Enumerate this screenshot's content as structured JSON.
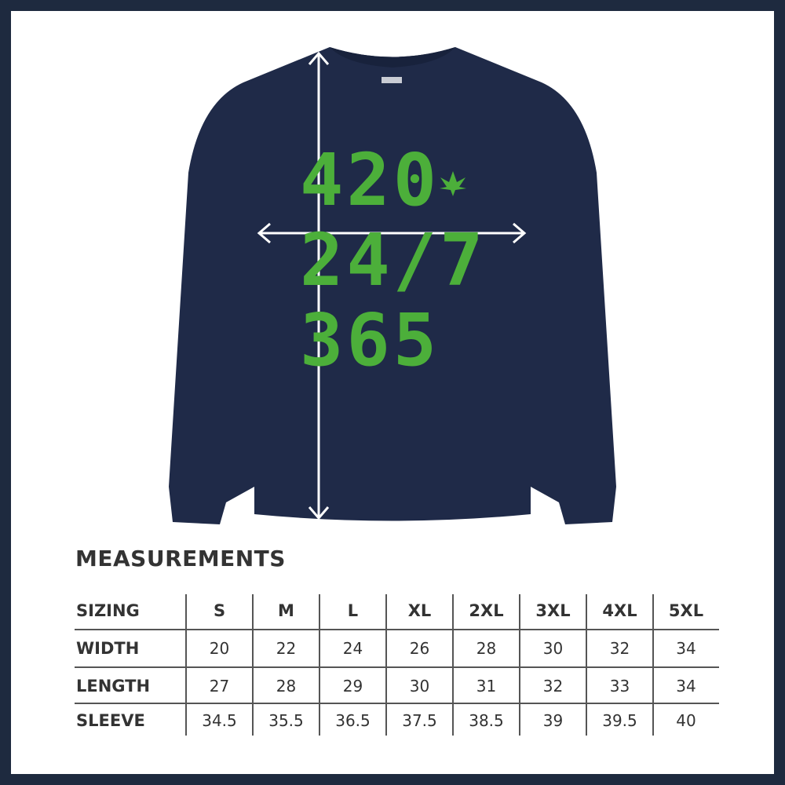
{
  "product": {
    "print_lines": [
      "420",
      "24/7",
      "365"
    ],
    "shirt_color": "#1f2a48",
    "print_color": "#4caf3a",
    "frame_color": "#1e2a3f",
    "icons": [
      "cannabis-leaf-icon",
      "length-arrow-icon",
      "width-arrow-icon"
    ]
  },
  "measurements": {
    "title": "MEASUREMENTS",
    "header": [
      "SIZING",
      "S",
      "M",
      "L",
      "XL",
      "2XL",
      "3XL",
      "4XL",
      "5XL"
    ],
    "rows": [
      [
        "WIDTH",
        "20",
        "22",
        "24",
        "26",
        "28",
        "30",
        "32",
        "34"
      ],
      [
        "LENGTH",
        "27",
        "28",
        "29",
        "30",
        "31",
        "32",
        "33",
        "34"
      ],
      [
        "SLEEVE",
        "34.5",
        "35.5",
        "36.5",
        "37.5",
        "38.5",
        "39",
        "39.5",
        "40"
      ]
    ]
  }
}
